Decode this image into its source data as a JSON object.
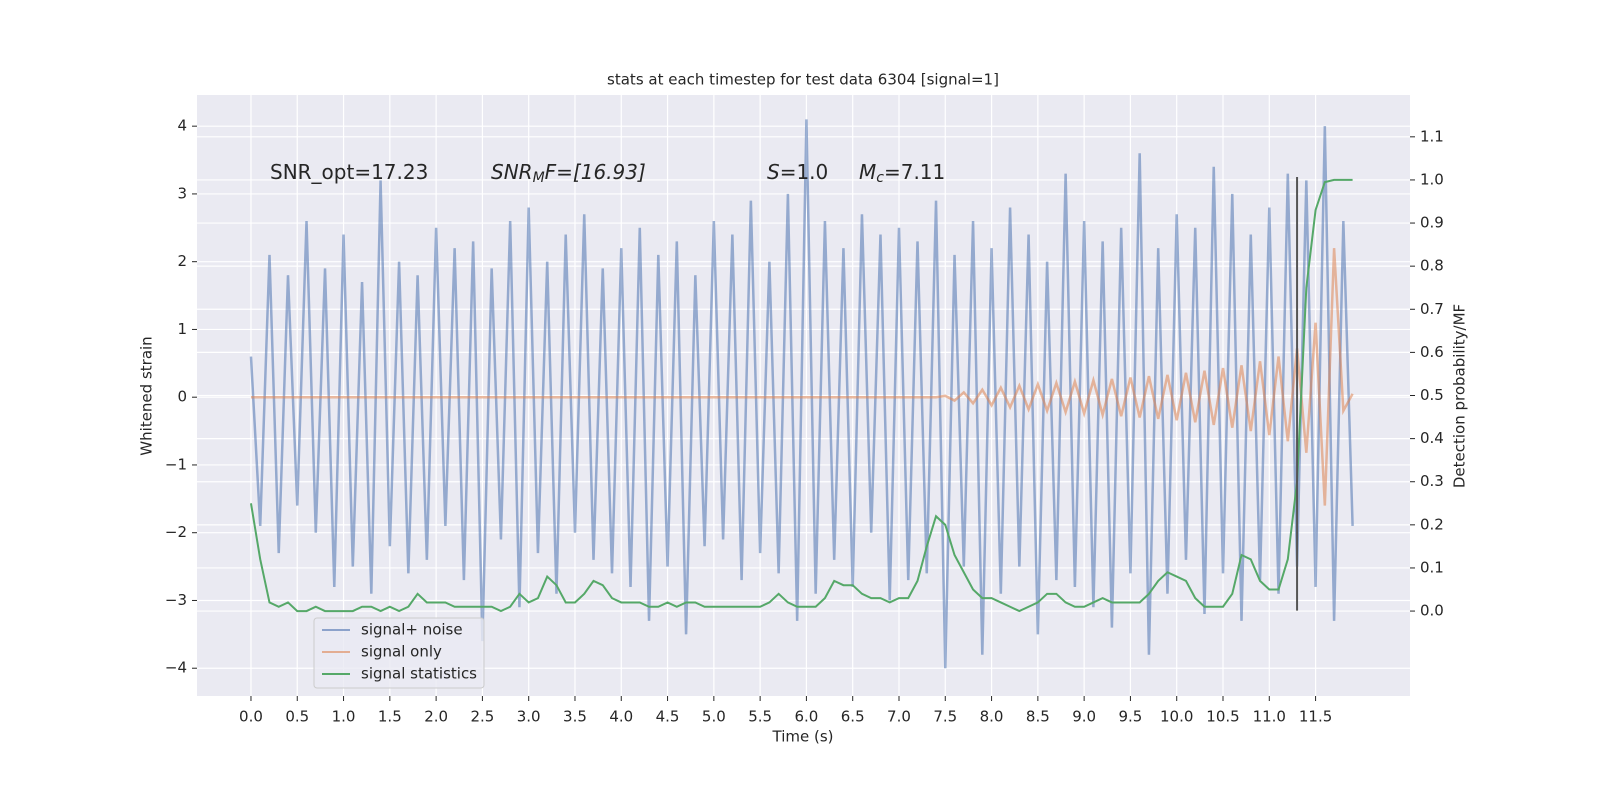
{
  "chart_data": {
    "type": "line",
    "title": "stats at each timestep for test data 6304 [signal=1]",
    "xlabel": "Time (s)",
    "ylabel": "Whitened strain",
    "y2label": "Detection probability/MF",
    "annotations": [
      [
        "SNR_opt=17.23"
      ],
      [
        "SNR",
        "M",
        "F=[16.93]"
      ],
      [
        "S",
        "=1.0"
      ],
      [
        "M",
        "c",
        "=7.11"
      ]
    ],
    "x": [
      0,
      0.1,
      0.2,
      0.3,
      0.4,
      0.5,
      0.6,
      0.7,
      0.8,
      0.9,
      1,
      1.1,
      1.2,
      1.3,
      1.4,
      1.5,
      1.6,
      1.7,
      1.8,
      1.9,
      2,
      2.1,
      2.2,
      2.3,
      2.4,
      2.5,
      2.6,
      2.7,
      2.8,
      2.9,
      3,
      3.1,
      3.2,
      3.3,
      3.4,
      3.5,
      3.6,
      3.7,
      3.8,
      3.9,
      4,
      4.1,
      4.2,
      4.3,
      4.4,
      4.5,
      4.6,
      4.7,
      4.8,
      4.9,
      5,
      5.1,
      5.2,
      5.3,
      5.4,
      5.5,
      5.6,
      5.7,
      5.8,
      5.9,
      6,
      6.1,
      6.2,
      6.3,
      6.4,
      6.5,
      6.6,
      6.7,
      6.8,
      6.9,
      7,
      7.1,
      7.2,
      7.3,
      7.4,
      7.5,
      7.6,
      7.7,
      7.8,
      7.9,
      8,
      8.1,
      8.2,
      8.3,
      8.4,
      8.5,
      8.6,
      8.7,
      8.8,
      8.9,
      9,
      9.1,
      9.2,
      9.3,
      9.4,
      9.5,
      9.6,
      9.7,
      9.8,
      9.9,
      10,
      10.1,
      10.2,
      10.3,
      10.4,
      10.5,
      10.6,
      10.7,
      10.8,
      10.9,
      11,
      11.1,
      11.2,
      11.3,
      11.4,
      11.5,
      11.6,
      11.7,
      11.8,
      11.9
    ],
    "series": [
      {
        "name": "signal+ noise",
        "color": "#4c72b0",
        "values": [
          0.6,
          -1.9,
          2.1,
          -2.3,
          1.8,
          -1.6,
          2.6,
          -2.0,
          1.9,
          -2.8,
          2.4,
          -2.5,
          1.7,
          -2.9,
          3.2,
          -2.2,
          2.0,
          -2.6,
          1.8,
          -2.4,
          2.5,
          -1.9,
          2.2,
          -2.7,
          2.3,
          -3.6,
          1.9,
          -2.1,
          2.6,
          -3.1,
          2.8,
          -2.3,
          2.0,
          -2.9,
          2.4,
          -2.0,
          2.7,
          -2.4,
          1.9,
          -2.6,
          2.2,
          -2.8,
          2.5,
          -3.3,
          2.1,
          -2.5,
          2.3,
          -3.5,
          1.8,
          -2.2,
          2.6,
          -2.1,
          2.4,
          -2.7,
          2.9,
          -2.3,
          2.0,
          -2.6,
          3.0,
          -3.3,
          4.1,
          -2.9,
          2.6,
          -2.4,
          2.2,
          -2.8,
          2.7,
          -2.0,
          2.4,
          -3.0,
          2.5,
          -2.7,
          2.3,
          -2.6,
          2.9,
          -4.0,
          2.1,
          -2.5,
          2.6,
          -3.8,
          2.2,
          -2.9,
          2.8,
          -2.5,
          2.4,
          -3.5,
          2.0,
          -2.7,
          3.3,
          -2.8,
          2.6,
          -3.1,
          2.3,
          -3.4,
          2.5,
          -2.6,
          3.6,
          -3.8,
          2.2,
          -2.9,
          2.7,
          -2.4,
          2.5,
          -3.2,
          3.4,
          -2.6,
          3.0,
          -3.3,
          2.4,
          -2.7,
          2.8,
          -2.9,
          3.3,
          -2.5,
          3.2,
          -2.8,
          4.0,
          -3.3,
          2.6,
          -1.9
        ]
      },
      {
        "name": "signal only",
        "color": "#dd8452",
        "values": [
          0,
          0,
          0,
          0,
          0,
          0,
          0,
          0,
          0,
          0,
          0,
          0,
          0,
          0,
          0,
          0,
          0,
          0,
          0,
          0,
          0,
          0,
          0,
          0,
          0,
          0,
          0,
          0,
          0,
          0,
          0,
          0,
          0,
          0,
          0,
          0,
          0,
          0,
          0,
          0,
          0,
          0,
          0,
          0,
          0,
          0,
          0,
          0,
          0,
          0,
          0,
          0,
          0,
          0,
          0,
          0,
          0,
          0,
          0,
          0,
          0,
          0,
          0,
          0,
          0,
          0,
          0,
          0,
          0,
          0,
          0,
          0,
          0,
          0,
          0,
          0.02,
          -0.05,
          0.07,
          -0.09,
          0.11,
          -0.12,
          0.14,
          -0.15,
          0.17,
          -0.18,
          0.19,
          -0.2,
          0.21,
          -0.22,
          0.23,
          -0.24,
          0.25,
          -0.26,
          0.27,
          -0.28,
          0.29,
          -0.3,
          0.31,
          -0.32,
          0.33,
          -0.34,
          0.36,
          -0.37,
          0.39,
          -0.41,
          0.43,
          -0.45,
          0.47,
          -0.5,
          0.53,
          -0.56,
          0.6,
          -0.65,
          0.72,
          -0.82,
          1.1,
          -1.6,
          2.2,
          -0.2,
          0.05
        ]
      },
      {
        "name": "signal statistics",
        "color": "#55a868",
        "axis": "y2",
        "values": [
          0.25,
          0.12,
          0.02,
          0.01,
          0.02,
          0.0,
          0.0,
          0.01,
          0.0,
          0.0,
          0.0,
          0.0,
          0.01,
          0.01,
          0.0,
          0.01,
          0.0,
          0.01,
          0.04,
          0.02,
          0.02,
          0.02,
          0.01,
          0.01,
          0.01,
          0.01,
          0.01,
          0.0,
          0.01,
          0.04,
          0.02,
          0.03,
          0.08,
          0.06,
          0.02,
          0.02,
          0.04,
          0.07,
          0.06,
          0.03,
          0.02,
          0.02,
          0.02,
          0.01,
          0.01,
          0.02,
          0.01,
          0.02,
          0.02,
          0.01,
          0.01,
          0.01,
          0.01,
          0.01,
          0.01,
          0.01,
          0.02,
          0.04,
          0.02,
          0.01,
          0.01,
          0.01,
          0.03,
          0.07,
          0.06,
          0.06,
          0.04,
          0.03,
          0.03,
          0.02,
          0.03,
          0.03,
          0.07,
          0.15,
          0.22,
          0.2,
          0.13,
          0.09,
          0.05,
          0.03,
          0.03,
          0.02,
          0.01,
          0.0,
          0.01,
          0.02,
          0.04,
          0.04,
          0.02,
          0.01,
          0.01,
          0.02,
          0.03,
          0.02,
          0.02,
          0.02,
          0.02,
          0.04,
          0.07,
          0.09,
          0.08,
          0.07,
          0.03,
          0.01,
          0.01,
          0.01,
          0.04,
          0.13,
          0.12,
          0.07,
          0.05,
          0.05,
          0.12,
          0.3,
          0.75,
          0.93,
          0.995,
          1.0,
          1.0,
          1.0
        ]
      }
    ],
    "vline": {
      "x": 11.3,
      "ymin": -3.15,
      "ymax": 3.25,
      "color": "#555555"
    },
    "xlim": [
      -0.583,
      12.52
    ],
    "ylim": [
      -4.41,
      4.46
    ],
    "y2lim": [
      -0.197,
      1.197
    ],
    "xticks": [
      {
        "value": 0,
        "label": "0.0"
      },
      0.5,
      {
        "value": 1,
        "label": "1.0"
      },
      1.5,
      {
        "value": 2,
        "label": "2.0"
      },
      2.5,
      {
        "value": 3,
        "label": "3.0"
      },
      3.5,
      {
        "value": 4,
        "label": "4.0"
      },
      4.5,
      {
        "value": 5,
        "label": "5.0"
      },
      5.5,
      {
        "value": 6,
        "label": "6.0"
      },
      6.5,
      {
        "value": 7,
        "label": "7.0"
      },
      7.5,
      {
        "value": 8,
        "label": "8.0"
      },
      8.5,
      {
        "value": 9,
        "label": "9.0"
      },
      9.5,
      {
        "value": 10,
        "label": "10.0"
      },
      10.5,
      {
        "value": 11,
        "label": "11.0"
      },
      11.5
    ],
    "yticks": [
      {
        "value": -4,
        "label": "−4"
      },
      {
        "value": -3,
        "label": "−3"
      },
      {
        "value": -2,
        "label": "−2"
      },
      {
        "value": -1,
        "label": "−1"
      },
      0,
      1,
      2,
      3,
      4
    ],
    "y2ticks": [
      {
        "value": 0,
        "label": "0.0"
      },
      0.1,
      0.2,
      0.3,
      0.4,
      0.5,
      0.6,
      0.7,
      0.8,
      0.9,
      {
        "value": 1,
        "label": "1.0"
      },
      1.1
    ],
    "grid": true,
    "legend": "lower left"
  }
}
